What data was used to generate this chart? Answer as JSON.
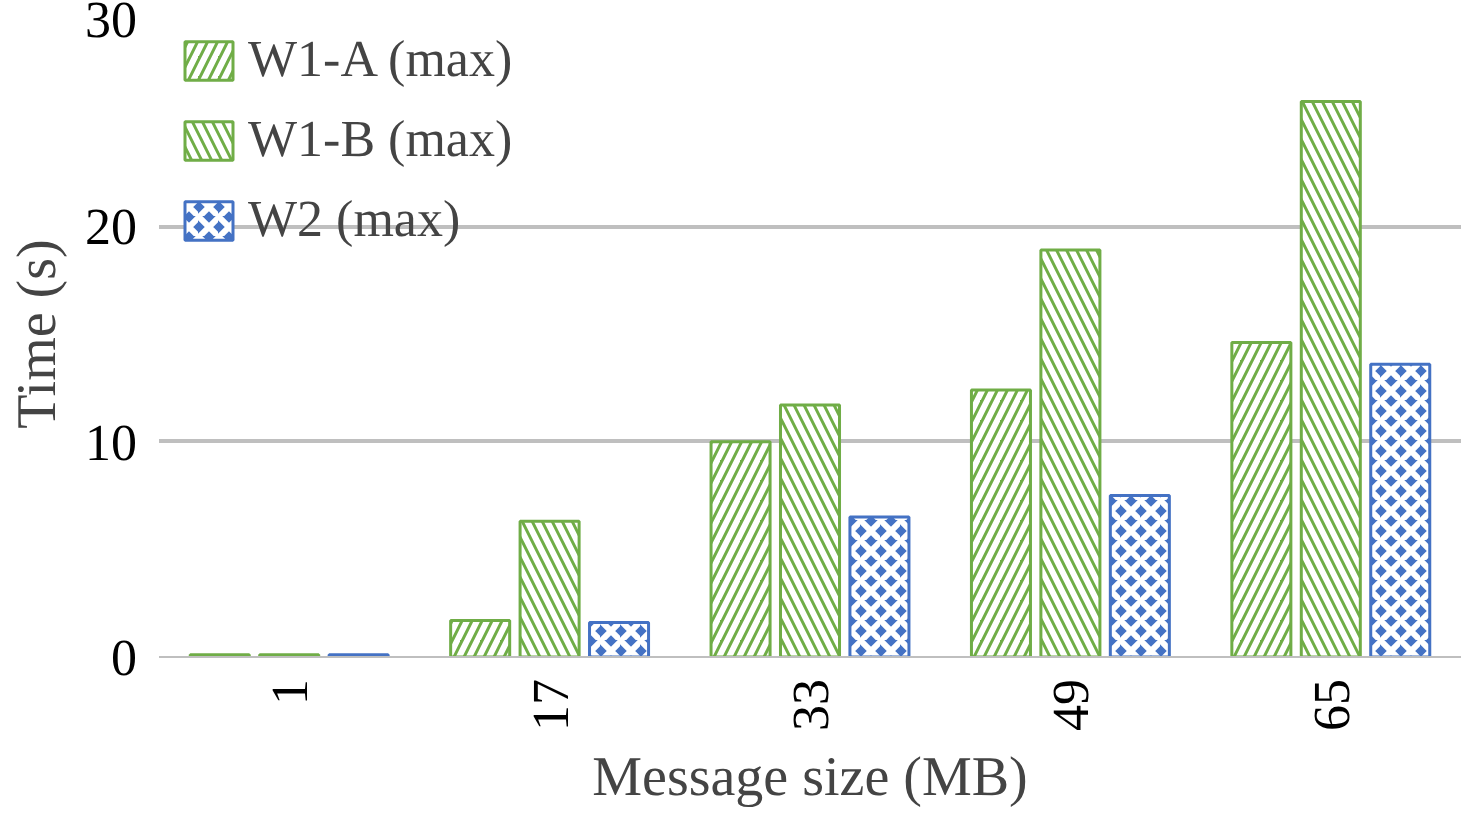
{
  "chart_data": {
    "type": "bar",
    "xlabel": "Message size (MB)",
    "ylabel": "Time (s)",
    "categories": [
      "1",
      "17",
      "33",
      "49",
      "65"
    ],
    "series": [
      {
        "name": "W1-A (max)",
        "color": "#70ad47",
        "values": [
          0.1,
          1.7,
          10.0,
          12.4,
          14.6
        ]
      },
      {
        "name": "W1-B (max)",
        "color": "#70ad47",
        "values": [
          0.1,
          6.3,
          11.7,
          18.9,
          25.8
        ]
      },
      {
        "name": "W2 (max)",
        "color": "#4472c4",
        "values": [
          0.1,
          1.6,
          6.5,
          7.5,
          13.6
        ]
      }
    ],
    "ylim": [
      0,
      30
    ],
    "yticks": [
      0,
      10,
      20,
      30
    ],
    "grid": "y",
    "legend": "top left"
  }
}
